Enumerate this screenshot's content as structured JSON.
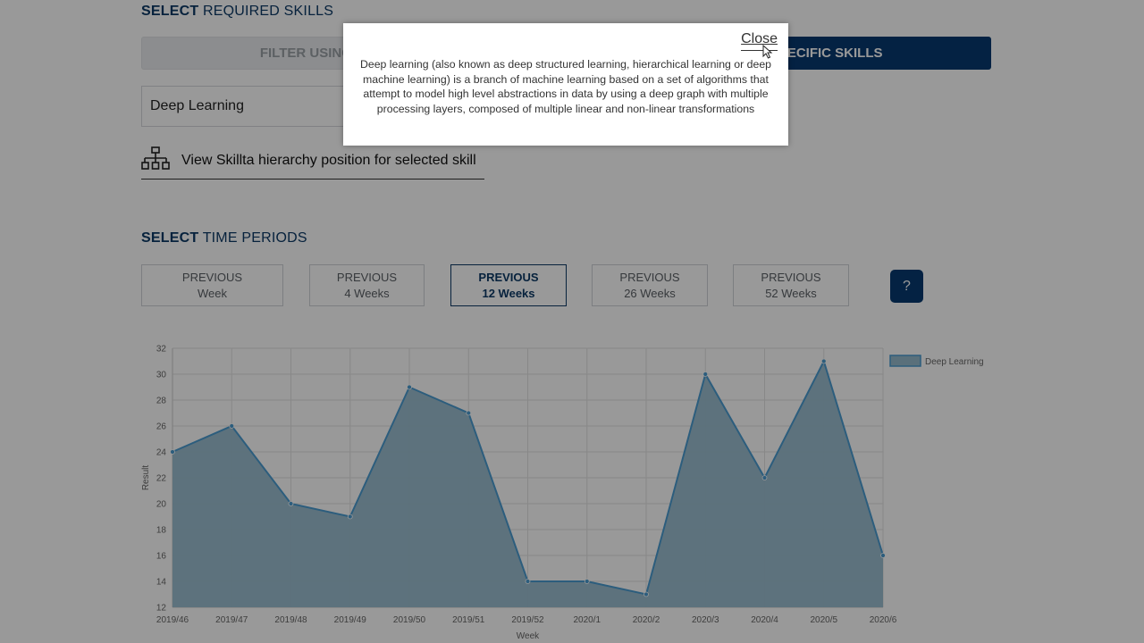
{
  "skills_section": {
    "title_bold": "SELECT",
    "title_rest": "REQUIRED SKILLS",
    "filter_left_label": "FILTER USING SKILLTA",
    "filter_right_label": "SELECT SPECIFIC SKILLS",
    "selected_skill": "Deep Learning",
    "hierarchy_link": "View Skillta hierarchy position for selected skill",
    "hierarchy_icon": "org-chart-icon"
  },
  "time_section": {
    "title_bold": "SELECT",
    "title_rest": "TIME PERIODS",
    "periods": [
      {
        "line1": "PREVIOUS",
        "line2": "Week",
        "active": false
      },
      {
        "line1": "PREVIOUS",
        "line2": "4 Weeks",
        "active": false
      },
      {
        "line1": "PREVIOUS",
        "line2": "12 Weeks",
        "active": true
      },
      {
        "line1": "PREVIOUS",
        "line2": "26 Weeks",
        "active": false
      },
      {
        "line1": "PREVIOUS",
        "line2": "52 Weeks",
        "active": false
      }
    ],
    "help_label": "?"
  },
  "chart_data": {
    "type": "area",
    "x": [
      "2019/46",
      "2019/47",
      "2019/48",
      "2019/49",
      "2019/50",
      "2019/51",
      "2019/52",
      "2020/1",
      "2020/2",
      "2020/3",
      "2020/4",
      "2020/5",
      "2020/6"
    ],
    "series": [
      {
        "name": "Deep Learning",
        "values": [
          24,
          26,
          20,
          19,
          29,
          27,
          14,
          14,
          13,
          30,
          22,
          31,
          16
        ]
      }
    ],
    "xlabel": "Week",
    "ylabel": "Result",
    "ylim": [
      12,
      32
    ],
    "yticks": [
      12,
      14,
      16,
      18,
      20,
      22,
      24,
      26,
      28,
      30,
      32
    ],
    "grid": true,
    "legend": "top-right",
    "fill_color": "#97bbcd",
    "line_color": "#4a9cd1"
  },
  "modal": {
    "close_label": "Close",
    "text": "Deep learning (also known as deep structured learning, hierarchical learning or deep machine learning) is a branch of machine learning based on a set of algorithms that attempt to model high level abstractions in data by using a deep graph with multiple processing layers, composed of multiple linear and non-linear transformations"
  },
  "colors": {
    "brand_navy": "#083a70",
    "overlay": "rgba(0,0,0,0.40)"
  }
}
